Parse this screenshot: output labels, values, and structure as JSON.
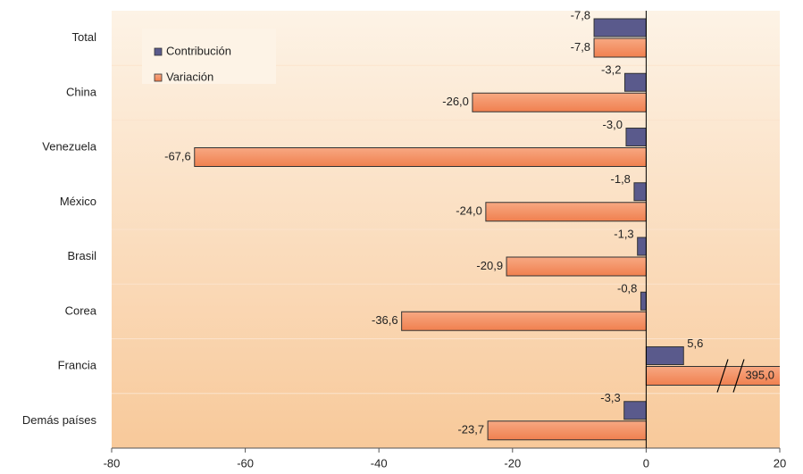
{
  "chart_data": {
    "type": "bar",
    "orientation": "horizontal",
    "categories": [
      "Total",
      "China",
      "Venezuela",
      "México",
      "Brasil",
      "Corea",
      "Francia",
      "Demás países"
    ],
    "series": [
      {
        "name": "Contribución",
        "color": "#5a5a8c",
        "values": [
          -7.8,
          -3.2,
          -3.0,
          -1.8,
          -1.3,
          -0.8,
          5.6,
          -3.3
        ],
        "value_labels": [
          "-7,8",
          "-3,2",
          "-3,0",
          "-1,8",
          "-1,3",
          "-0,8",
          "5,6",
          "-3,3"
        ]
      },
      {
        "name": "Variación",
        "color": "#f4926a",
        "values": [
          -7.8,
          -26.0,
          -67.6,
          -24.0,
          -20.9,
          -36.6,
          395.0,
          -23.7
        ],
        "value_labels": [
          "-7,8",
          "-26,0",
          "-67,6",
          "-24,0",
          "-20,9",
          "-36,6",
          "395,0",
          "-23,7"
        ]
      }
    ],
    "xlim": [
      -80,
      20
    ],
    "xticks": [
      -80,
      -60,
      -40,
      -20,
      0,
      20
    ],
    "legend": "upper left"
  }
}
